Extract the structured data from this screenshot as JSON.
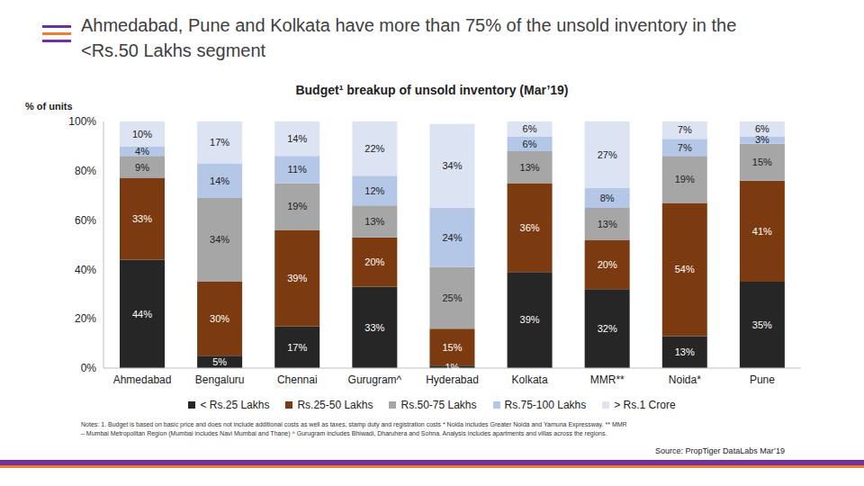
{
  "header": {
    "title": "Ahmedabad, Pune and Kolkata have more than 75% of the unsold inventory in the <Rs.50 Lakhs segment"
  },
  "chart_data": {
    "type": "bar",
    "stacked": true,
    "data_labels": true,
    "grid": false,
    "title": "Budget¹ breakup of unsold inventory (Mar’19)",
    "y_label": "% of units",
    "categories": [
      "Ahmedabad",
      "Bengaluru",
      "Chennai",
      "Gurugram^",
      "Hyderabad",
      "Kolkata",
      "MMR**",
      "Noida*",
      "Pune"
    ],
    "ylim": [
      0,
      100
    ],
    "yticks": [
      {
        "value": 0,
        "label": "0%"
      },
      {
        "value": 20,
        "label": "20%"
      },
      {
        "value": 40,
        "label": "40%"
      },
      {
        "value": 60,
        "label": "60%"
      },
      {
        "value": 80,
        "label": "80%"
      },
      {
        "value": 100,
        "label": "100%"
      }
    ],
    "legend": "bottom",
    "series": [
      {
        "name": "< Rs.25 Lakhs",
        "color": "#262626",
        "values": [
          44,
          5,
          17,
          33,
          1,
          39,
          32,
          13,
          35
        ],
        "value_labels": [
          "44%",
          "5%",
          "17%",
          "33%",
          "1%",
          "39%",
          "32%",
          "13%",
          "35%"
        ]
      },
      {
        "name": "Rs.25-50 Lakhs",
        "color": "#7B3A10",
        "values": [
          33,
          30,
          39,
          20,
          15,
          36,
          20,
          54,
          41
        ],
        "value_labels": [
          "33%",
          "30%",
          "39%",
          "20%",
          "15%",
          "36%",
          "20%",
          "54%",
          "41%"
        ]
      },
      {
        "name": "Rs.50-75 Lakhs",
        "color": "#A6A6A6",
        "values": [
          9,
          34,
          19,
          13,
          25,
          13,
          13,
          19,
          15
        ],
        "value_labels": [
          "9%",
          "34%",
          "19%",
          "13%",
          "25%",
          "13%",
          "13%",
          "19%",
          "15%"
        ]
      },
      {
        "name": "Rs.75-100 Lakhs",
        "color": "#B4C7E7",
        "values": [
          4,
          14,
          11,
          12,
          24,
          6,
          8,
          7,
          3
        ],
        "value_labels": [
          "4%",
          "14%",
          "11%",
          "12%",
          "24%",
          "6%",
          "8%",
          "7%",
          "3%"
        ]
      },
      {
        "name": "> Rs.1 Crore",
        "color": "#DCE3F2",
        "values": [
          10,
          17,
          14,
          22,
          34,
          6,
          27,
          7,
          6
        ],
        "value_labels": [
          "10%",
          "17%",
          "14%",
          "22%",
          "34%",
          "6%",
          "27%",
          "7%",
          "6%"
        ]
      }
    ]
  },
  "notes": "Notes: 1. Budget is based on basic price and does not include additional costs as well as taxes, stamp duty and registration costs * Noida includes Greater Noida and Yamuna Expressway. ** MMR – Mumbai Metropolitan Region (Mumbai includes Navi Mumbai and Thane) ^ Gurugram includes Bhiwadi, Dharuhera and Sohna. Analysis includes apartments and villas across the regions.",
  "source": "Source: PropTiger DataLabs Mar’19"
}
